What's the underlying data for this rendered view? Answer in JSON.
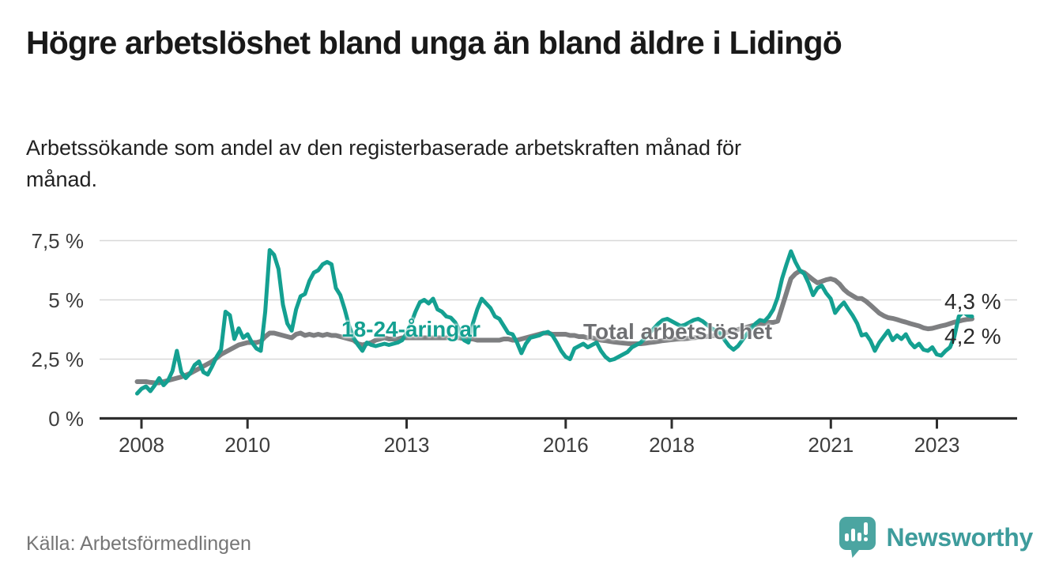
{
  "header": {
    "title": "Högre arbetslöshet bland unga än bland äldre i Lidingö",
    "subtitle": "Arbetssökande som andel av den registerbaserade arbetskraften månad för månad."
  },
  "chart_data": {
    "type": "line",
    "title": "Högre arbetslöshet bland unga än bland äldre i Lidingö",
    "xlabel": "",
    "ylabel": "Arbetssökande som andel av den registerbaserade arbetskraften",
    "grid": "horizontal",
    "legend_position": "inline-labels",
    "x_unit": "month",
    "x_start": "2008-01",
    "x_end": "2023-10",
    "ylim": [
      0,
      7.9
    ],
    "x_ticks": [
      2008,
      2010,
      2013,
      2016,
      2018,
      2021,
      2023
    ],
    "y_ticks": [
      {
        "label": "0 %",
        "value": 0
      },
      {
        "label": "2,5 %",
        "value": 2.5
      },
      {
        "label": "5 %",
        "value": 5
      },
      {
        "label": "7,5 %",
        "value": 7.5
      }
    ],
    "end_labels": [
      "4,3 %",
      "4,2 %"
    ],
    "series": [
      {
        "name": "Total arbetslöshet",
        "color": "#7e7f81",
        "width": 6,
        "last_value": "4,2 %",
        "values": [
          1.55,
          1.55,
          1.55,
          1.52,
          1.5,
          1.5,
          1.55,
          1.6,
          1.65,
          1.7,
          1.75,
          1.82,
          1.9,
          2.0,
          2.1,
          2.2,
          2.3,
          2.4,
          2.55,
          2.7,
          2.8,
          2.9,
          3.0,
          3.1,
          3.15,
          3.2,
          3.2,
          3.2,
          3.25,
          3.45,
          3.6,
          3.6,
          3.55,
          3.5,
          3.45,
          3.4,
          3.55,
          3.6,
          3.5,
          3.55,
          3.5,
          3.55,
          3.5,
          3.55,
          3.5,
          3.5,
          3.45,
          3.4,
          3.35,
          3.3,
          3.15,
          3.1,
          3.15,
          3.2,
          3.3,
          3.35,
          3.4,
          3.35,
          3.35,
          3.35,
          3.4,
          3.4,
          3.4,
          3.4,
          3.4,
          3.4,
          3.4,
          3.4,
          3.4,
          3.4,
          3.4,
          3.4,
          3.4,
          3.4,
          3.35,
          3.35,
          3.35,
          3.3,
          3.3,
          3.3,
          3.3,
          3.3,
          3.3,
          3.35,
          3.35,
          3.3,
          3.3,
          3.35,
          3.4,
          3.45,
          3.5,
          3.55,
          3.6,
          3.6,
          3.55,
          3.55,
          3.55,
          3.55,
          3.5,
          3.5,
          3.45,
          3.45,
          3.4,
          3.4,
          3.35,
          3.3,
          3.28,
          3.25,
          3.22,
          3.2,
          3.18,
          3.16,
          3.15,
          3.15,
          3.15,
          3.17,
          3.2,
          3.22,
          3.25,
          3.28,
          3.3,
          3.32,
          3.34,
          3.35,
          3.36,
          3.38,
          3.4,
          3.42,
          3.44,
          3.46,
          3.48,
          3.5,
          3.55,
          3.6,
          3.65,
          3.7,
          3.75,
          3.8,
          3.85,
          3.9,
          3.95,
          4.0,
          4.0,
          4.05,
          4.05,
          4.1,
          4.7,
          5.3,
          5.9,
          6.1,
          6.22,
          6.15,
          6.0,
          5.85,
          5.72,
          5.78,
          5.85,
          5.89,
          5.83,
          5.67,
          5.44,
          5.28,
          5.17,
          5.06,
          5.06,
          4.94,
          4.78,
          4.61,
          4.44,
          4.33,
          4.25,
          4.22,
          4.17,
          4.11,
          4.06,
          4.0,
          3.95,
          3.9,
          3.82,
          3.78,
          3.8,
          3.85,
          3.9,
          3.94,
          4.0,
          4.06,
          4.1,
          4.15,
          4.18,
          4.2
        ]
      },
      {
        "name": "18-24-åringar",
        "color": "#14a091",
        "width": 5,
        "last_value": "4,3 %",
        "values": [
          1.05,
          1.25,
          1.35,
          1.15,
          1.4,
          1.7,
          1.4,
          1.6,
          2.0,
          2.85,
          1.95,
          1.7,
          1.9,
          2.25,
          2.4,
          1.95,
          1.85,
          2.2,
          2.6,
          2.9,
          4.5,
          4.35,
          3.35,
          3.8,
          3.4,
          3.55,
          3.2,
          2.95,
          2.85,
          4.5,
          7.1,
          6.9,
          6.3,
          4.8,
          4.0,
          3.7,
          4.6,
          5.15,
          5.25,
          5.8,
          6.15,
          6.25,
          6.5,
          6.6,
          6.5,
          5.5,
          5.2,
          4.6,
          3.9,
          3.4,
          3.1,
          2.85,
          3.2,
          3.1,
          3.05,
          3.1,
          3.15,
          3.1,
          3.15,
          3.2,
          3.3,
          3.6,
          4.0,
          4.5,
          4.9,
          5.0,
          4.85,
          5.05,
          4.6,
          4.5,
          4.3,
          4.25,
          4.05,
          3.7,
          3.3,
          3.2,
          4.0,
          4.6,
          5.05,
          4.85,
          4.65,
          4.3,
          4.2,
          3.9,
          3.6,
          3.55,
          3.2,
          2.75,
          3.15,
          3.4,
          3.45,
          3.5,
          3.6,
          3.65,
          3.5,
          3.2,
          2.85,
          2.6,
          2.5,
          2.95,
          3.05,
          3.15,
          3.0,
          3.1,
          3.2,
          2.85,
          2.6,
          2.45,
          2.5,
          2.6,
          2.7,
          2.8,
          3.0,
          3.1,
          3.2,
          3.4,
          3.6,
          3.8,
          4.0,
          4.15,
          4.2,
          4.1,
          4.0,
          3.9,
          3.95,
          4.05,
          4.15,
          4.2,
          4.1,
          3.95,
          3.8,
          3.7,
          3.6,
          3.3,
          3.05,
          2.9,
          3.05,
          3.3,
          3.55,
          3.8,
          4.0,
          4.15,
          4.1,
          4.3,
          4.6,
          5.1,
          5.9,
          6.5,
          7.05,
          6.6,
          6.25,
          6.1,
          5.7,
          5.2,
          5.5,
          5.6,
          5.28,
          5.05,
          4.45,
          4.7,
          4.89,
          4.6,
          4.33,
          4.0,
          3.5,
          3.56,
          3.28,
          2.85,
          3.2,
          3.45,
          3.7,
          3.3,
          3.5,
          3.35,
          3.55,
          3.2,
          3.0,
          3.15,
          2.9,
          2.85,
          3.0,
          2.7,
          2.65,
          2.85,
          3.0,
          3.45,
          4.3,
          4.5,
          4.35,
          4.3
        ]
      }
    ],
    "colors": {
      "youth_line": "#14a091",
      "total_line": "#7e7f81",
      "gridline": "#d8d8d8",
      "axis": "#2e2e2e",
      "tick_text": "#3d3d3d",
      "end_label_text": "#2b2b2b"
    }
  },
  "footer": {
    "source": "Källa: Arbetsförmedlingen",
    "brand": "Newsworthy",
    "brand_color": "#3e9c9c",
    "brand_icon": "speech-bubble-bar-chart-exclamation",
    "brand_icon_color": "#4ba5a1"
  }
}
